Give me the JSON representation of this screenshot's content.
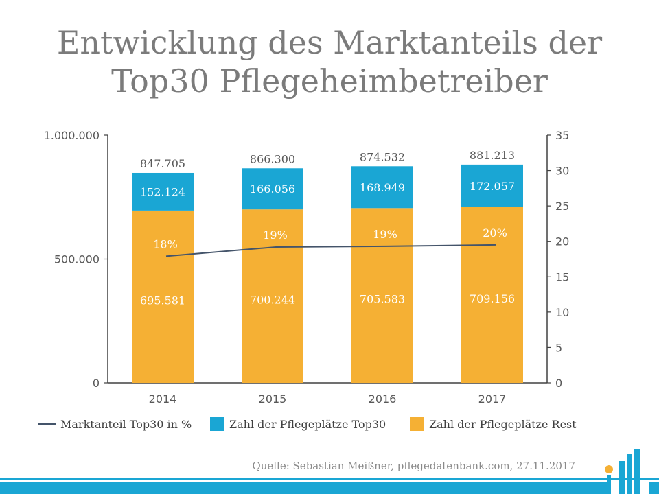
{
  "chart_data": {
    "type": "bar",
    "title_lines": [
      "Entwicklung des Marktanteils der",
      "Top30 Pflegeheimbetreiber"
    ],
    "categories": [
      "2014",
      "2015",
      "2016",
      "2017"
    ],
    "stacked": true,
    "series": [
      {
        "name": "Zahl der Pflegeplätze Rest",
        "color": "#f5b034",
        "values": [
          695581,
          700244,
          705583,
          709156
        ],
        "labels": [
          "695.581",
          "700.244",
          "705.583",
          "709.156"
        ]
      },
      {
        "name": "Zahl der Pflegeplätze Top30",
        "color": "#1aa6d4",
        "values": [
          152124,
          166056,
          168949,
          172057
        ],
        "labels": [
          "152.124",
          "166.056",
          "168.949",
          "172.057"
        ]
      }
    ],
    "totals": {
      "values": [
        847705,
        866300,
        874532,
        881213
      ],
      "labels": [
        "847.705",
        "866.300",
        "874.532",
        "881.213"
      ]
    },
    "line_series": {
      "name": "Marktanteil  Top30 in %",
      "color": "#44546a",
      "values": [
        17.9,
        19.2,
        19.3,
        19.5
      ],
      "labels": [
        "18%",
        "19%",
        "19%",
        "20%"
      ],
      "axis": "right"
    },
    "y_left": {
      "min": 0,
      "max": 1000000,
      "ticks": [
        0,
        500000,
        1000000
      ],
      "tick_labels": [
        "0",
        "500.000",
        "1.000.000"
      ]
    },
    "y_right": {
      "min": 0,
      "max": 35,
      "ticks": [
        0,
        5,
        10,
        15,
        20,
        25,
        30,
        35
      ],
      "tick_labels": [
        "0",
        "5",
        "10",
        "15",
        "20",
        "25",
        "30",
        "35"
      ]
    },
    "grid": false,
    "legend_position": "bottom",
    "legend": [
      {
        "name": "Marktanteil  Top30 in %",
        "kind": "line",
        "color": "#44546a"
      },
      {
        "name": "Zahl der Pflegeplätze Top30",
        "kind": "box",
        "color": "#1aa6d4"
      },
      {
        "name": "Zahl der Pflegeplätze Rest",
        "kind": "box",
        "color": "#f5b034"
      }
    ]
  },
  "source": "Quelle: Sebastian Meißner, pflegedatenbank.com, 27.11.2017",
  "footer_band_color": "#1aa6d4"
}
